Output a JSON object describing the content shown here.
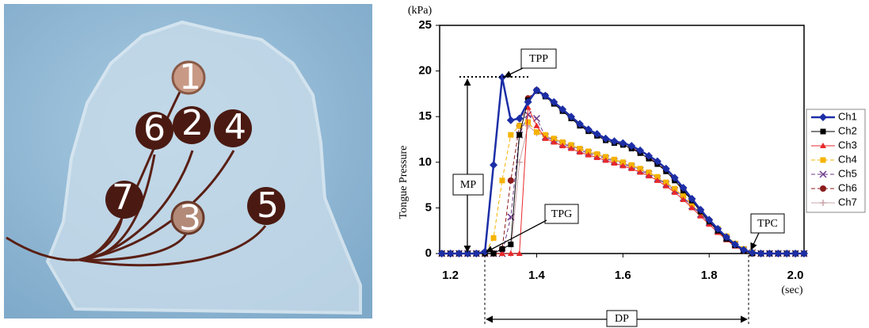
{
  "photo": {
    "sensor_labels": [
      "1",
      "6",
      "2",
      "4",
      "7",
      "3",
      "5"
    ]
  },
  "chart_data": {
    "type": "line",
    "y_unit": "(kPa)",
    "x_unit": "(sec)",
    "ylabel": "Tongue Pressure",
    "annotations": [
      "TPP",
      "MP",
      "TPG",
      "TPC",
      "DP"
    ],
    "xlim": [
      1.175,
      2.02
    ],
    "ylim": [
      0,
      25
    ],
    "xticks": [
      1.2,
      1.4,
      1.6,
      1.8,
      {
        "value": 2,
        "label": "2.0"
      }
    ],
    "yticks": [
      0,
      5,
      10,
      15,
      20,
      25
    ],
    "grid": false,
    "legend": "right",
    "x": [
      1.18,
      1.2,
      1.22,
      1.24,
      1.26,
      1.28,
      1.3,
      1.32,
      1.34,
      1.36,
      1.38,
      1.4,
      1.42,
      1.44,
      1.46,
      1.48,
      1.5,
      1.52,
      1.54,
      1.56,
      1.58,
      1.6,
      1.62,
      1.64,
      1.66,
      1.68,
      1.7,
      1.72,
      1.74,
      1.76,
      1.78,
      1.8,
      1.82,
      1.84,
      1.86,
      1.88,
      1.9,
      1.92,
      1.94,
      1.96,
      1.98,
      2,
      2.02
    ],
    "series": [
      {
        "name": "Ch1",
        "color": "#1c2ea6",
        "marker": "diamond",
        "dash": false,
        "width": 2.5,
        "values": [
          0,
          0,
          0,
          0,
          0,
          0.2,
          9.7,
          19.3,
          14.6,
          14.8,
          16.6,
          17.9,
          17.3,
          16.6,
          15.8,
          15.0,
          14.2,
          13.6,
          13.1,
          12.6,
          12.3,
          12.1,
          11.8,
          11.3,
          10.7,
          10.1,
          9.3,
          8.3,
          7.2,
          6.0,
          4.8,
          3.7,
          2.7,
          1.8,
          1.0,
          0.4,
          0.1,
          0,
          0,
          0,
          0,
          0,
          0
        ]
      },
      {
        "name": "Ch2",
        "color": "#000000",
        "marker": "square",
        "dash": false,
        "width": 1,
        "values": [
          0,
          0,
          0,
          0,
          0,
          0,
          0,
          0.5,
          1.0,
          13.0,
          16.8,
          17.8,
          17.2,
          16.4,
          15.6,
          14.8,
          14.0,
          13.4,
          12.9,
          12.4,
          12.1,
          11.9,
          11.5,
          11.0,
          10.4,
          9.8,
          9.0,
          8.0,
          6.9,
          5.8,
          4.6,
          3.5,
          2.5,
          1.6,
          0.9,
          0.3,
          0,
          0,
          0,
          0,
          0,
          0,
          0
        ]
      },
      {
        "name": "Ch3",
        "color": "#e8282a",
        "marker": "triangle",
        "dash": false,
        "width": 1,
        "values": [
          0,
          0,
          0,
          0,
          0,
          0,
          0,
          0,
          0,
          0,
          16.0,
          14.0,
          12.6,
          12.2,
          11.8,
          11.5,
          11.1,
          10.8,
          10.5,
          10.2,
          9.9,
          9.6,
          9.3,
          8.9,
          8.5,
          8.0,
          7.4,
          6.7,
          5.9,
          5.0,
          4.1,
          3.2,
          2.3,
          1.5,
          0.8,
          0.3,
          0,
          0,
          0,
          0,
          0,
          0,
          0
        ]
      },
      {
        "name": "Ch4",
        "color": "#f5b300",
        "marker": "square",
        "dash": true,
        "width": 1,
        "values": [
          0,
          0,
          0,
          0,
          0,
          0,
          1.7,
          8.0,
          13.0,
          14.0,
          14.4,
          13.3,
          13.0,
          12.6,
          12.2,
          11.9,
          11.5,
          11.2,
          10.9,
          10.6,
          10.3,
          10.0,
          9.7,
          9.3,
          8.9,
          8.4,
          7.8,
          7.1,
          6.3,
          5.4,
          4.5,
          3.6,
          2.7,
          1.9,
          1.1,
          0.5,
          0.1,
          0,
          0,
          0,
          0,
          0,
          0
        ]
      },
      {
        "name": "Ch5",
        "color": "#6e3a8a",
        "marker": "x",
        "dash": true,
        "width": 1,
        "values": [
          0,
          0,
          0,
          0,
          0,
          0,
          0,
          0,
          4.0,
          13.0,
          15.2,
          14.8,
          12.8,
          12.4,
          12.0,
          11.7,
          11.3,
          11.0,
          10.7,
          10.4,
          10.1,
          9.8,
          9.5,
          9.1,
          8.7,
          8.2,
          7.6,
          6.9,
          6.1,
          5.2,
          4.3,
          3.4,
          2.5,
          1.7,
          1.0,
          0.4,
          0.1,
          0,
          0,
          0,
          0,
          0,
          0
        ]
      },
      {
        "name": "Ch6",
        "color": "#8c1c1c",
        "marker": "circle",
        "dash": true,
        "width": 1,
        "values": [
          0,
          0,
          0,
          0,
          0,
          0,
          0,
          0.5,
          8.0,
          14.0,
          17.0,
          17.9,
          17.3,
          16.5,
          15.7,
          14.9,
          14.1,
          13.5,
          13.0,
          12.5,
          12.2,
          12.0,
          11.6,
          11.1,
          10.5,
          9.9,
          9.1,
          8.1,
          7.0,
          5.9,
          4.7,
          3.6,
          2.6,
          1.7,
          0.9,
          0.3,
          0,
          0,
          0,
          0,
          0,
          0,
          0
        ]
      },
      {
        "name": "Ch7",
        "color": "#c8a4a8",
        "marker": "plus",
        "dash": false,
        "width": 1,
        "values": [
          0,
          0,
          0,
          0,
          0,
          0,
          0,
          0,
          0,
          10.0,
          14.0,
          13.2,
          12.9,
          12.5,
          12.1,
          11.8,
          11.4,
          11.1,
          10.8,
          10.5,
          10.2,
          9.9,
          9.6,
          9.2,
          8.8,
          8.3,
          7.7,
          7.0,
          6.2,
          5.3,
          4.4,
          3.5,
          2.6,
          1.8,
          1.0,
          0.4,
          0.1,
          0,
          0,
          0,
          0,
          0,
          0
        ]
      }
    ]
  }
}
